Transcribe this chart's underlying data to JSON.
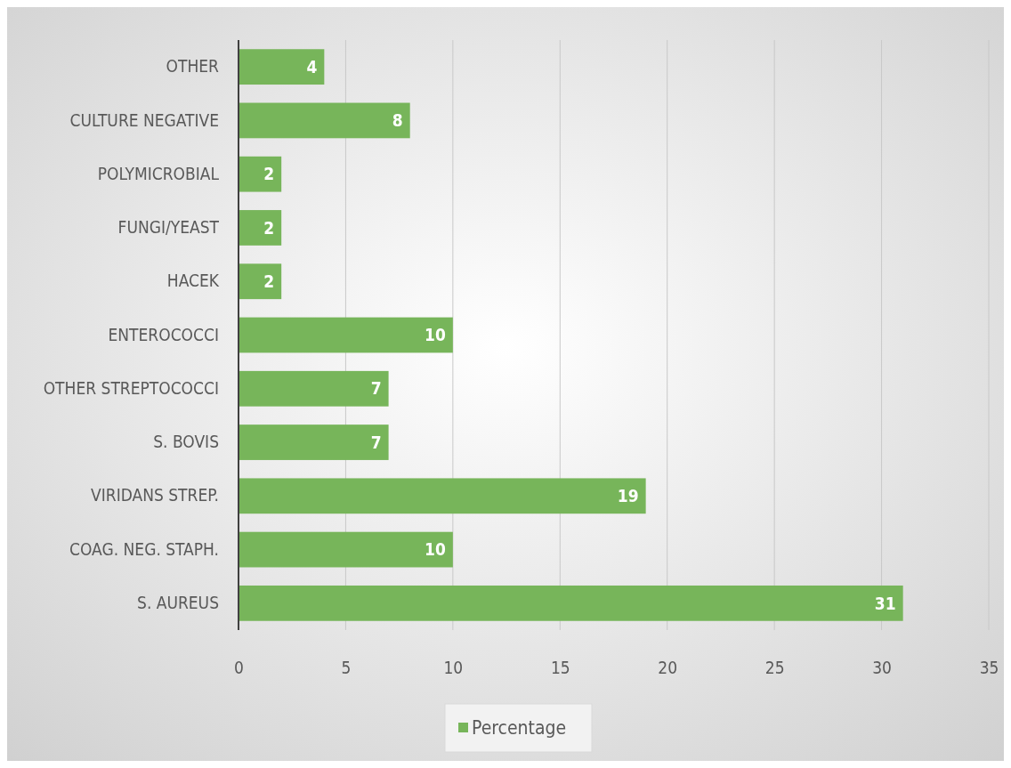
{
  "chart_data": {
    "type": "bar",
    "orientation": "horizontal",
    "categories": [
      "OTHER",
      "CULTURE NEGATIVE",
      "POLYMICROBIAL",
      "FUNGI/YEAST",
      "HACEK",
      "ENTEROCOCCI",
      "OTHER STREPTOCOCCI",
      "S. BOVIS",
      "VIRIDANS STREP.",
      "COAG. NEG. STAPH.",
      "S. AUREUS"
    ],
    "series": [
      {
        "name": "Percentage",
        "color": "#77b55a",
        "values": [
          4,
          8,
          2,
          2,
          2,
          10,
          7,
          7,
          19,
          10,
          31
        ]
      }
    ],
    "xlim": [
      0,
      35
    ],
    "xticks": [
      0,
      5,
      10,
      15,
      20,
      25,
      30,
      35
    ],
    "grid": "x",
    "legend": "bottom",
    "data_labels": true
  }
}
